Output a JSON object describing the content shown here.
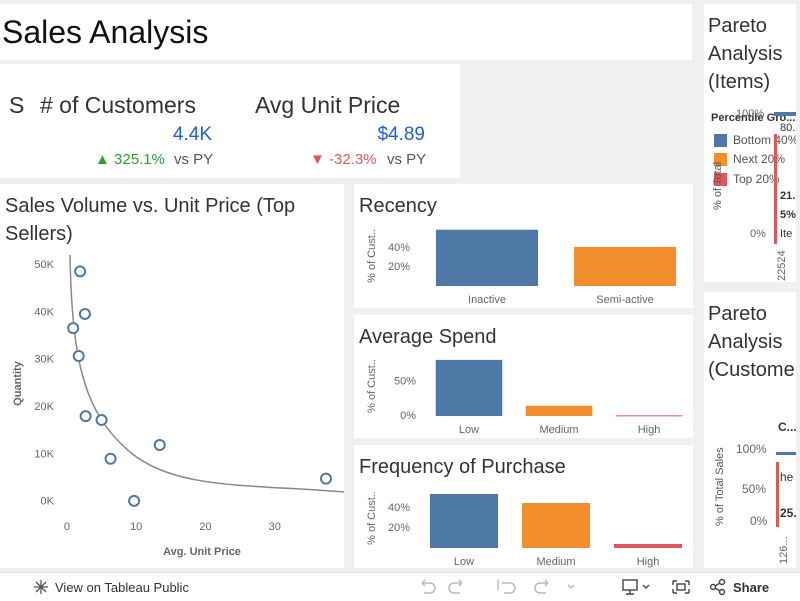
{
  "header": {
    "title": "Sales Analysis"
  },
  "kpis": [
    {
      "label": "S"
    },
    {
      "label": "# of Customers",
      "value": "4.4K",
      "change": "▲ 325.1%",
      "comparison": "vs PY"
    },
    {
      "label": "Avg Unit Price",
      "value": "$4.89",
      "change": "▼ -32.3%",
      "comparison": "vs PY"
    }
  ],
  "chart_data": [
    {
      "type": "scatter",
      "title": "Sales Volume vs. Unit Price (Top Sellers)",
      "x_label": "Avg. Unit Price",
      "y_label": "Quantity",
      "color": "#4e79a7",
      "x": [
        1.9,
        2.6,
        0.9,
        1.7,
        2.7,
        5.0,
        6.3,
        13.4,
        9.7,
        37.4
      ],
      "values": [
        48700,
        39700,
        36700,
        30800,
        18100,
        17300,
        9100,
        12000,
        200,
        4900
      ],
      "xlim": [
        -1,
        40
      ],
      "ylim": [
        -3000,
        53000
      ],
      "xticks": [
        0,
        10,
        20,
        30
      ],
      "yticks": [
        {
          "value": 0,
          "label": "0K"
        },
        {
          "value": 10000,
          "label": "10K"
        },
        {
          "value": 20000,
          "label": "20K"
        },
        {
          "value": 30000,
          "label": "30K"
        },
        {
          "value": 40000,
          "label": "40K"
        },
        {
          "value": 50000,
          "label": "50K"
        }
      ]
    },
    {
      "type": "bar",
      "title": "Recency",
      "y_label": "% of Cust..",
      "categories": [
        "Inactive",
        "Semi-active"
      ],
      "values": [
        59,
        41
      ],
      "colors": [
        "#4e79a7",
        "#f28e2b"
      ],
      "ylim": [
        0,
        65
      ],
      "yticks": [
        {
          "value": 20,
          "label": "20%"
        },
        {
          "value": 40,
          "label": "40%"
        }
      ]
    },
    {
      "type": "bar",
      "title": "Average Spend",
      "y_label": "% of Cust..",
      "categories": [
        "Low",
        "Medium",
        "High"
      ],
      "values": [
        82,
        15,
        1
      ],
      "colors": [
        "#4e79a7",
        "#f28e2b",
        "#e15759"
      ],
      "ylim": [
        0,
        95
      ],
      "yticks": [
        {
          "value": 0,
          "label": "0%"
        },
        {
          "value": 50,
          "label": "50%"
        }
      ]
    },
    {
      "type": "bar",
      "title": "Frequency of Purchase",
      "y_label": "% of Cust..",
      "categories": [
        "Low",
        "Medium",
        "High"
      ],
      "values": [
        54,
        45,
        4
      ],
      "colors": [
        "#4e79a7",
        "#f28e2b",
        "#e15759"
      ],
      "ylim": [
        0,
        65
      ],
      "yticks": [
        {
          "value": 20,
          "label": "20%"
        },
        {
          "value": 40,
          "label": "40%"
        }
      ]
    }
  ],
  "pareto_items": {
    "title": "Pareto Analysis (Items)",
    "legend_title": "Percentile Gro...",
    "legend": [
      "Bottom 40%",
      "Next 20%",
      "Top 20%"
    ],
    "y_label": "% of Total",
    "yticks": [
      "100%",
      "0%"
    ],
    "x_label": "22524",
    "labels": [
      "80.",
      "21.",
      "5%",
      "Ite"
    ]
  },
  "pareto_customers": {
    "title": "Pareto Analysis (Custome",
    "legend_title": "C...",
    "y_label": "% of Total Sales",
    "yticks": [
      "100%",
      "50%",
      "0%"
    ],
    "x_label": "126...",
    "labels": [
      "he",
      "25."
    ]
  },
  "toolbar": {
    "view": "View on Tableau Public",
    "share": "Share"
  }
}
